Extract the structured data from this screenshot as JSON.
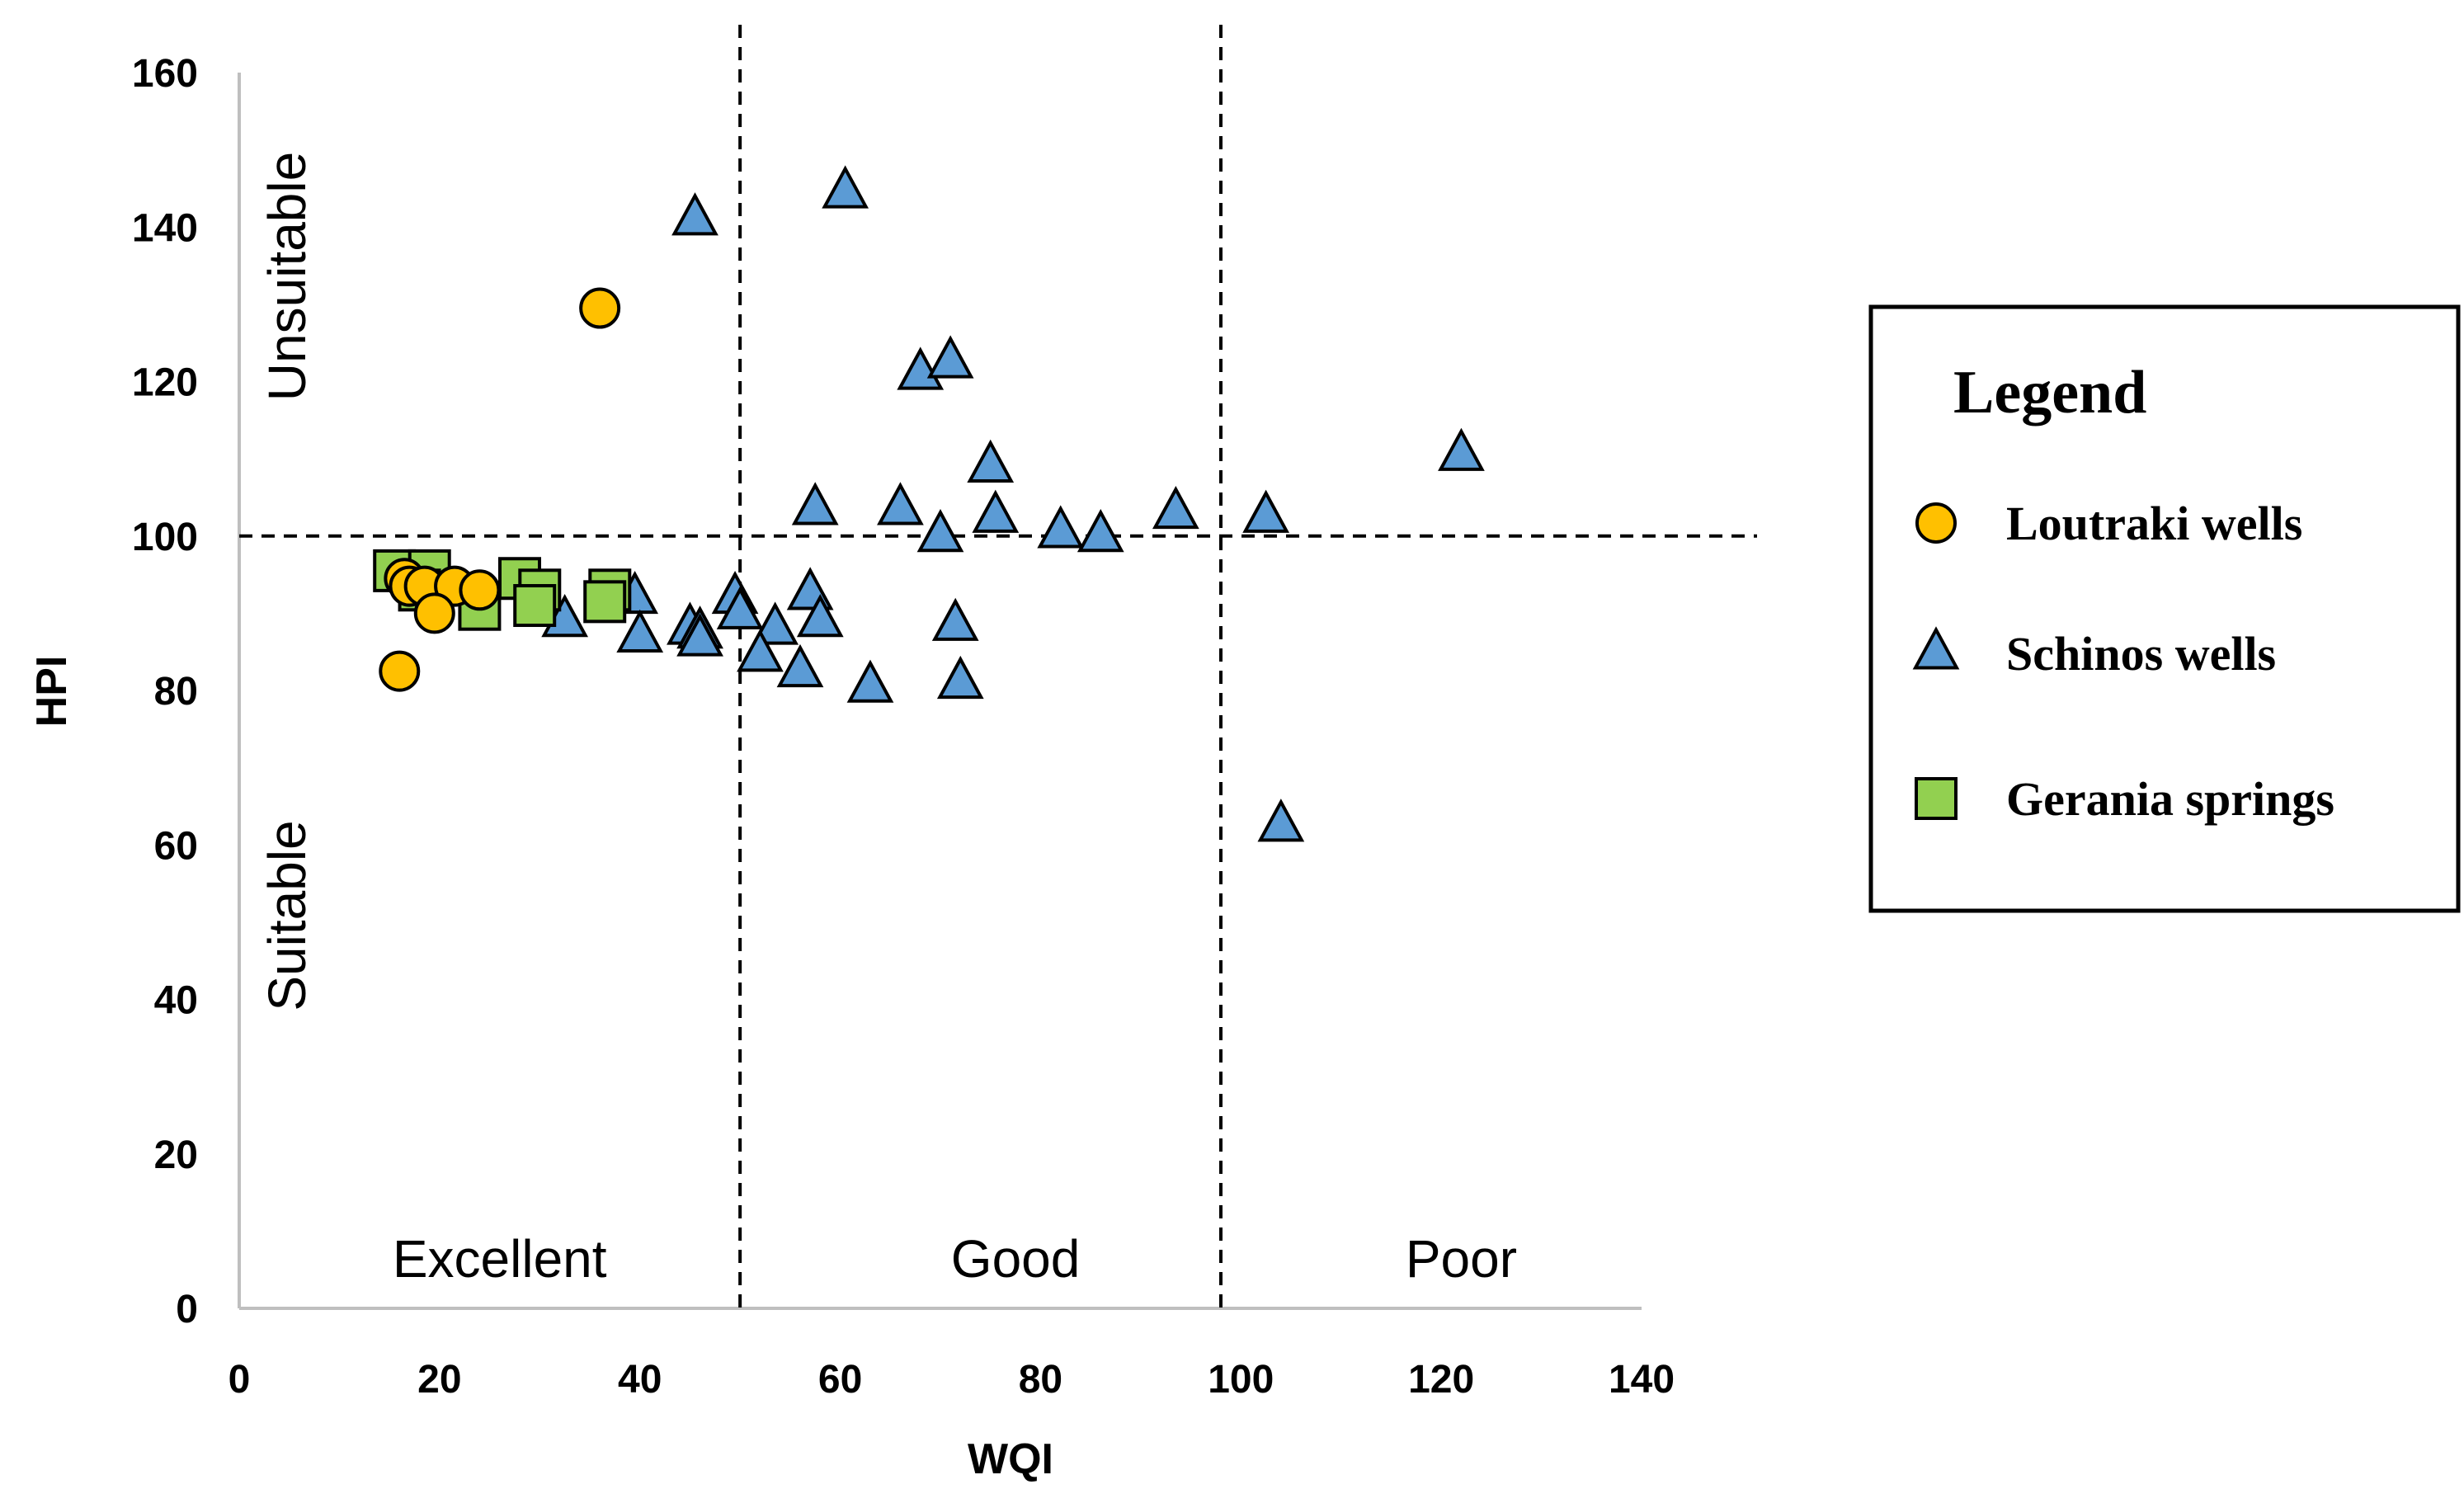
{
  "chart_data": {
    "type": "scatter",
    "xlabel": "WQI",
    "ylabel": "HPI",
    "xlim": [
      0,
      140
    ],
    "ylim": [
      0,
      160
    ],
    "x_ticks": [
      "0",
      "20",
      "40",
      "60",
      "80",
      "100",
      "140"
    ],
    "x_ticks_all": [
      "0",
      "20",
      "40",
      "60",
      "80",
      "100",
      "120",
      "140"
    ],
    "y_ticks": [
      "0",
      "20",
      "40",
      "60",
      "80",
      "100",
      "120",
      "140",
      "160"
    ],
    "grid": false,
    "thresholds": {
      "wqi": [
        50,
        98
      ],
      "hpi": 100
    },
    "zone_labels": {
      "excellent": "Excellent",
      "good": "Good",
      "poor": "Poor",
      "unsuitable": "Unsuitable",
      "suitable": "Suitable"
    },
    "legend": {
      "title": "Legend",
      "placement": "right",
      "items": [
        "Loutraki wells",
        "Schinos wells",
        "Gerania springs"
      ]
    },
    "series": [
      {
        "name": "Schinos wells",
        "marker": "triangle",
        "color": "#5B9BD5",
        "points": [
          [
            45.5,
            141
          ],
          [
            60.5,
            144.5
          ],
          [
            68,
            121
          ],
          [
            71,
            122.5
          ],
          [
            75,
            109
          ],
          [
            122,
            110.5
          ],
          [
            57.5,
            103.5
          ],
          [
            66,
            103.5
          ],
          [
            75.5,
            102.5
          ],
          [
            93.5,
            103
          ],
          [
            102.5,
            102.5
          ],
          [
            70,
            100
          ],
          [
            82,
            100.5
          ],
          [
            86,
            100
          ],
          [
            49.5,
            92
          ],
          [
            57,
            92.5
          ],
          [
            39.5,
            92
          ],
          [
            50,
            90
          ],
          [
            53.5,
            88
          ],
          [
            58,
            89
          ],
          [
            32.5,
            89
          ],
          [
            45,
            88
          ],
          [
            46,
            87.5
          ],
          [
            40,
            87
          ],
          [
            46,
            86.5
          ],
          [
            52,
            84.5
          ],
          [
            56,
            82.5
          ],
          [
            63,
            80.5
          ],
          [
            71.5,
            88.5
          ],
          [
            72,
            81
          ],
          [
            104,
            62.5
          ]
        ]
      },
      {
        "name": "Gerania springs",
        "marker": "square",
        "color": "#92D050",
        "points": [
          [
            15.5,
            95.5
          ],
          [
            19,
            95.5
          ],
          [
            18,
            93
          ],
          [
            24,
            90.5
          ],
          [
            28,
            94.5
          ],
          [
            30,
            93
          ],
          [
            29.5,
            91
          ],
          [
            37,
            93
          ],
          [
            36.5,
            91.5
          ]
        ]
      },
      {
        "name": "Loutraki wells",
        "marker": "circle",
        "color": "#FFC000",
        "points": [
          [
            36,
            129.5
          ],
          [
            16.5,
            94.5
          ],
          [
            17,
            93.5
          ],
          [
            18.5,
            93.5
          ],
          [
            21.5,
            93.5
          ],
          [
            24,
            93
          ],
          [
            19.5,
            90
          ],
          [
            16,
            82.5
          ]
        ]
      }
    ]
  }
}
